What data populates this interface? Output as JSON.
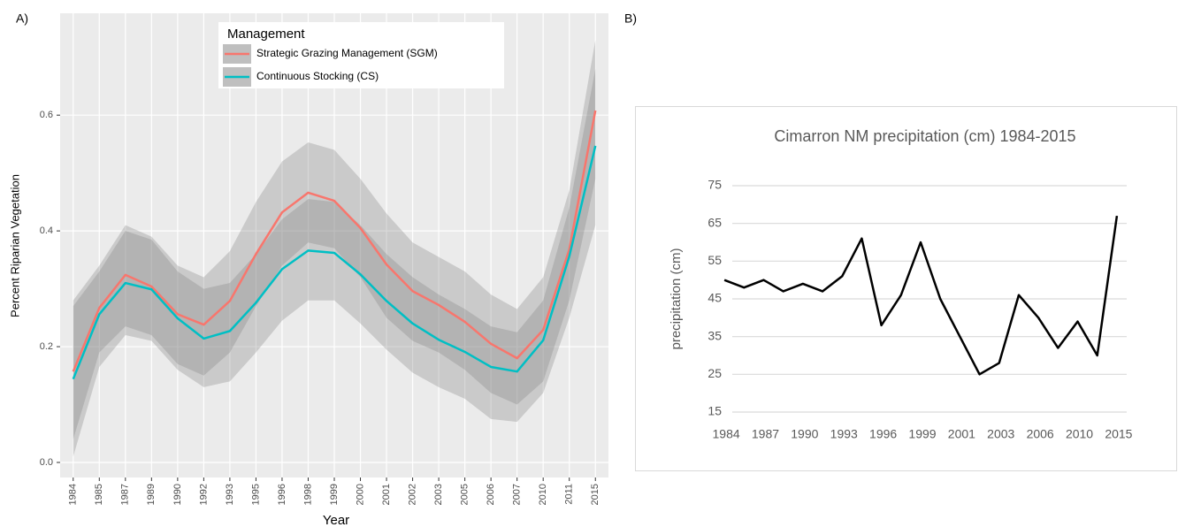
{
  "chart_data": [
    {
      "type": "line",
      "panel_label": "A)",
      "x_label": "Year",
      "y_label": "Percent Riparian Vegetation",
      "legend_title": "Management",
      "legend_position": "top",
      "categories": [
        "1984",
        "1985",
        "1987",
        "1989",
        "1990",
        "1992",
        "1993",
        "1995",
        "1996",
        "1998",
        "1999",
        "2000",
        "2001",
        "2002",
        "2003",
        "2005",
        "2006",
        "2007",
        "2010",
        "2011",
        "2015"
      ],
      "ylim": [
        -0.026,
        0.776
      ],
      "yticks": [
        {
          "value": 0,
          "label": "0.0"
        },
        0.2,
        0.4,
        0.6
      ],
      "grid": true,
      "band_color": "#7f7f7f",
      "series": [
        {
          "name": "Strategic Grazing Management (SGM)",
          "color": "#f8766d",
          "values": [
            0.157,
            0.267,
            0.324,
            0.304,
            0.256,
            0.238,
            0.279,
            0.36,
            0.432,
            0.466,
            0.452,
            0.405,
            0.342,
            0.296,
            0.272,
            0.243,
            0.205,
            0.18,
            0.229,
            0.368,
            0.608
          ],
          "upper": [
            0.28,
            0.34,
            0.41,
            0.39,
            0.34,
            0.32,
            0.365,
            0.45,
            0.52,
            0.553,
            0.54,
            0.49,
            0.43,
            0.38,
            0.355,
            0.33,
            0.29,
            0.265,
            0.32,
            0.47,
            0.73
          ],
          "lower": [
            0.04,
            0.19,
            0.235,
            0.22,
            0.17,
            0.15,
            0.19,
            0.27,
            0.34,
            0.38,
            0.37,
            0.32,
            0.25,
            0.21,
            0.19,
            0.16,
            0.12,
            0.1,
            0.14,
            0.28,
            0.49
          ]
        },
        {
          "name": "Continuous Stocking (CS)",
          "color": "#00bfc4",
          "values": [
            0.144,
            0.256,
            0.31,
            0.299,
            0.249,
            0.214,
            0.227,
            0.276,
            0.334,
            0.366,
            0.362,
            0.325,
            0.279,
            0.24,
            0.212,
            0.191,
            0.165,
            0.157,
            0.211,
            0.356,
            0.547
          ],
          "upper": [
            0.27,
            0.33,
            0.4,
            0.385,
            0.33,
            0.3,
            0.31,
            0.36,
            0.42,
            0.455,
            0.45,
            0.41,
            0.36,
            0.32,
            0.29,
            0.265,
            0.235,
            0.225,
            0.28,
            0.44,
            0.68
          ],
          "lower": [
            0.01,
            0.165,
            0.22,
            0.21,
            0.16,
            0.13,
            0.14,
            0.19,
            0.245,
            0.28,
            0.28,
            0.24,
            0.195,
            0.155,
            0.13,
            0.11,
            0.075,
            0.07,
            0.12,
            0.25,
            0.41
          ]
        }
      ]
    },
    {
      "type": "line",
      "panel_label": "B)",
      "title": "Cimarron NM precipitation (cm) 1984-2015",
      "y_label": "precipitation (cm)",
      "categories": [
        "1984",
        null,
        "1987",
        null,
        "1990",
        null,
        "1993",
        null,
        "1996",
        null,
        "1999",
        null,
        "2001",
        null,
        "2003",
        null,
        "2006",
        null,
        "2010",
        null,
        "2015"
      ],
      "values": [
        50,
        48,
        50,
        47,
        49,
        47,
        51,
        61,
        38,
        46,
        60,
        45,
        35,
        25,
        28,
        46,
        40,
        32,
        39,
        30,
        67
      ],
      "color": "#000000",
      "ylim": [
        15,
        75
      ],
      "yticks": [
        15,
        25,
        35,
        45,
        55,
        65,
        75
      ],
      "grid": true
    }
  ]
}
